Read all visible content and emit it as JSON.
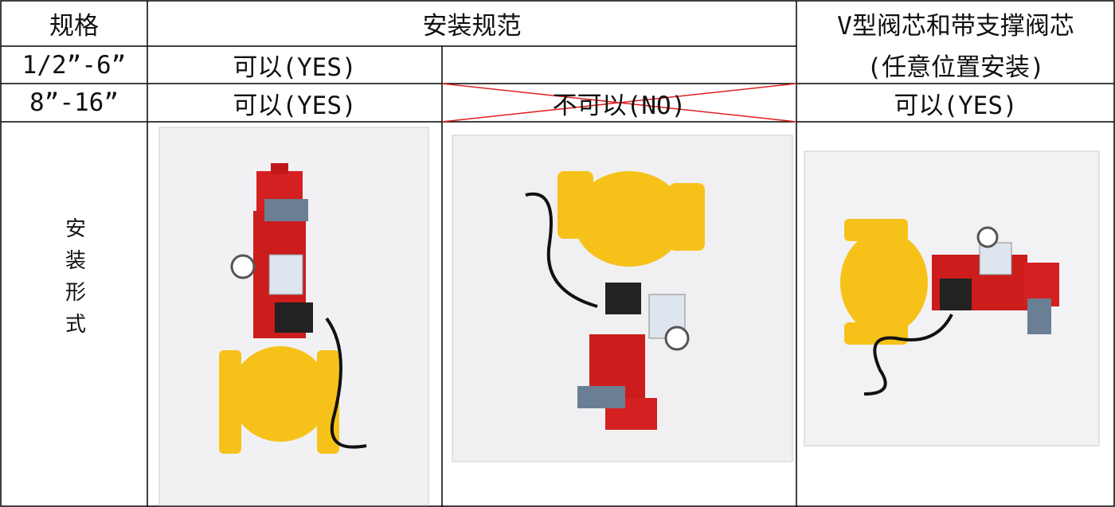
{
  "table": {
    "header": {
      "spec": "规格",
      "install_spec": "安装规范",
      "v_core": "V型阀芯和带支撑阀芯",
      "v_core_note": "(任意位置安装)"
    },
    "rows": [
      {
        "size": "1/2”-6”",
        "col2": "可以(YES)"
      },
      {
        "size": "8”-16”",
        "col2": "可以(YES)",
        "col3": "不可以(NO)",
        "col4": "可以(YES)"
      }
    ],
    "install_form": "安装形式"
  }
}
